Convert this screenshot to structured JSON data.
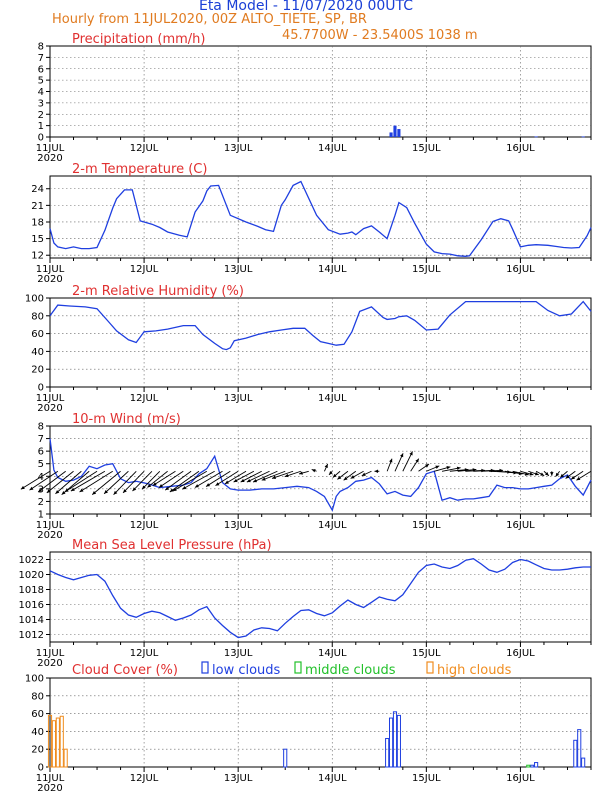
{
  "header": {
    "title": "Eta Model - 11/07/2020 00UTC",
    "subtitle": "Hourly from 11JUL2020, 00Z  ALTO_TIETE, SP, BR",
    "coordinates": "45.7700W - 23.5400S    1038  m"
  },
  "colors": {
    "line": "#1f3fe0",
    "title": "#e03030",
    "header_blue": "#1a3fd6",
    "header_orange": "#e07b20",
    "low": "#1f3fe0",
    "middle": "#22c02a",
    "high": "#f08c1e",
    "wind": "#000000"
  },
  "chart_data": [
    {
      "type": "bar",
      "title": "Precipitation (mm/h)",
      "xlabel": "",
      "ylabel": "",
      "x_range_hours": [
        0,
        138
      ],
      "ylim": [
        0,
        8
      ],
      "yticks": [
        "0",
        "1",
        "2",
        "3",
        "4",
        "5",
        "6",
        "7",
        "8"
      ],
      "xtick_labels": [
        "11JUL",
        "12JUL",
        "13JUL",
        "14JUL",
        "15JUL",
        "16JUL"
      ],
      "x_year_label": "2020",
      "bars": [
        {
          "hour": 87,
          "value": 0.4
        },
        {
          "hour": 88,
          "value": 1.0
        },
        {
          "hour": 89,
          "value": 0.7
        },
        {
          "hour": 124,
          "value": 0.05
        },
        {
          "hour": 136,
          "value": 0.05
        }
      ]
    },
    {
      "type": "line",
      "title": "2-m Temperature (C)",
      "xlabel": "",
      "ylabel": "",
      "x_range_hours": [
        0,
        138
      ],
      "ylim": [
        11.5,
        26.3
      ],
      "yticks": [
        "12",
        "15",
        "18",
        "21",
        "24"
      ],
      "xtick_labels": [
        "11JUL",
        "12JUL",
        "13JUL",
        "14JUL",
        "15JUL",
        "16JUL"
      ],
      "x_year_label": "2020",
      "x": [
        0,
        1,
        2,
        4,
        6,
        8,
        10,
        12,
        14,
        16,
        17,
        19,
        21,
        23,
        26,
        28,
        30,
        33,
        35,
        37,
        39,
        40,
        41,
        43,
        46,
        50,
        53,
        55,
        57,
        59,
        60,
        62,
        64,
        68,
        71,
        74,
        76,
        77,
        78,
        80,
        82,
        84,
        86,
        88,
        89,
        91,
        93,
        96,
        98,
        100,
        102,
        104,
        106,
        107,
        110,
        113,
        115,
        117,
        118,
        120,
        122,
        124,
        127,
        129,
        131,
        133,
        135,
        137,
        138
      ],
      "series": [
        {
          "name": "temperature",
          "values": [
            16.8,
            14.2,
            13.5,
            13.2,
            13.5,
            13.2,
            13.2,
            13.4,
            16.5,
            20.5,
            22.2,
            23.8,
            23.8,
            18.2,
            17.6,
            17.0,
            16.2,
            15.6,
            15.3,
            19.8,
            21.8,
            23.6,
            24.5,
            24.6,
            19.2,
            18.0,
            17.2,
            16.6,
            16.3,
            21.0,
            22.0,
            24.6,
            25.3,
            19.2,
            16.6,
            15.8,
            16.0,
            16.2,
            15.7,
            16.8,
            17.3,
            16.2,
            15.0,
            19.2,
            21.5,
            20.6,
            17.8,
            14.0,
            12.6,
            12.3,
            12.2,
            11.9,
            11.8,
            11.9,
            14.8,
            18.1,
            18.6,
            18.2,
            16.7,
            13.5,
            13.8,
            13.9,
            13.8,
            13.6,
            13.4,
            13.3,
            13.4,
            15.5,
            17.0
          ]
        }
      ]
    },
    {
      "type": "line",
      "title": "2-m Relative Humidity (%)",
      "xlabel": "",
      "ylabel": "",
      "x_range_hours": [
        0,
        138
      ],
      "ylim": [
        0,
        100
      ],
      "yticks": [
        "0",
        "20",
        "40",
        "60",
        "80",
        "100"
      ],
      "xtick_labels": [
        "11JUL",
        "12JUL",
        "13JUL",
        "14JUL",
        "15JUL",
        "16JUL"
      ],
      "x_year_label": "2020",
      "x": [
        0,
        2,
        5,
        9,
        12,
        15,
        17,
        20,
        22,
        24,
        27,
        30,
        34,
        37,
        39,
        42,
        44,
        45,
        46,
        47,
        50,
        53,
        56,
        59,
        62,
        65,
        67,
        69,
        71,
        73,
        75,
        77,
        79,
        82,
        85,
        86,
        88,
        89,
        91,
        93,
        96,
        99,
        102,
        106,
        110,
        113,
        117,
        120,
        124,
        127,
        130,
        133,
        136,
        138
      ],
      "series": [
        {
          "name": "relative_humidity",
          "values": [
            80,
            92,
            91,
            90,
            88,
            73,
            63,
            53,
            50,
            62,
            63,
            65,
            69,
            69,
            59,
            49,
            43,
            42,
            44,
            52,
            55,
            59,
            62,
            64,
            66,
            66,
            58,
            51,
            49,
            47,
            48,
            62,
            85,
            90,
            78,
            76,
            77,
            79,
            80,
            75,
            64,
            65,
            81,
            96,
            96,
            96,
            96,
            96,
            96,
            86,
            80,
            82,
            96,
            85
          ]
        }
      ]
    },
    {
      "type": "line",
      "title": "10-m Wind (m/s)",
      "xlabel": "",
      "ylabel": "",
      "x_range_hours": [
        0,
        138
      ],
      "ylim": [
        1,
        8
      ],
      "yticks": [
        "1",
        "2",
        "3",
        "4",
        "5",
        "6",
        "7",
        "8"
      ],
      "xtick_labels": [
        "11JUL",
        "12JUL",
        "13JUL",
        "14JUL",
        "15JUL",
        "16JUL"
      ],
      "x_year_label": "2020",
      "x": [
        0,
        1,
        2,
        4,
        6,
        8,
        10,
        12,
        14,
        16,
        18,
        20,
        22,
        25,
        28,
        31,
        34,
        36,
        38,
        40,
        42,
        44,
        46,
        48,
        51,
        54,
        57,
        60,
        63,
        66,
        68,
        70,
        72,
        73,
        74,
        76,
        78,
        80,
        82,
        84,
        86,
        88,
        90,
        92,
        94,
        96,
        98,
        100,
        102,
        104,
        106,
        108,
        110,
        112,
        114,
        116,
        118,
        120,
        122,
        124,
        126,
        128,
        130,
        132,
        134,
        136,
        138
      ],
      "series": [
        {
          "name": "wind_speed",
          "values": [
            7,
            4.5,
            3.9,
            3.6,
            3.7,
            4.0,
            4.8,
            4.6,
            4.9,
            5.0,
            3.8,
            3.5,
            3.6,
            3.4,
            3.1,
            3.2,
            3.3,
            3.5,
            4.2,
            4.6,
            5.6,
            3.5,
            3.0,
            2.9,
            2.9,
            3.0,
            3.0,
            3.1,
            3.2,
            3.1,
            2.8,
            2.4,
            1.3,
            2.4,
            2.8,
            3.1,
            3.6,
            3.7,
            3.9,
            3.4,
            2.6,
            2.8,
            2.5,
            2.4,
            3.1,
            4.2,
            4.4,
            2.1,
            2.3,
            2.1,
            2.2,
            2.2,
            2.3,
            2.4,
            3.3,
            3.1,
            3.1,
            3.0,
            3.0,
            3.1,
            3.2,
            3.3,
            3.8,
            4.1,
            3.2,
            2.5,
            3.7
          ]
        }
      ],
      "barbs": {
        "hours": [
          0,
          2,
          4,
          6,
          8,
          10,
          12,
          14,
          16,
          18,
          20,
          22,
          24,
          26,
          28,
          30,
          32,
          34,
          36,
          38,
          40,
          42,
          44,
          46,
          48,
          50,
          52,
          54,
          56,
          58,
          60,
          62,
          64,
          66,
          68,
          70,
          72,
          74,
          76,
          78,
          80,
          82,
          84,
          86,
          88,
          90,
          92,
          94,
          96,
          98,
          100,
          102,
          104,
          106,
          108,
          110,
          112,
          114,
          116,
          118,
          120,
          122,
          124,
          126,
          128,
          130,
          132,
          134,
          136,
          138
        ],
        "u": [
          -3.6,
          -3.5,
          -3.4,
          -3.3,
          -3.2,
          -3.4,
          -4.0,
          -4.2,
          -4.1,
          -3.5,
          -3.0,
          -2.8,
          -2.6,
          -2.4,
          -2.2,
          -2.5,
          -2.8,
          -3.0,
          -3.2,
          -3.6,
          -4.2,
          -4.0,
          -3.4,
          -3.0,
          -2.8,
          -2.6,
          -2.5,
          -2.6,
          -2.8,
          -3.0,
          -2.9,
          -2.6,
          -2.0,
          -1.2,
          -0.6,
          0.4,
          -0.4,
          -0.9,
          -1.3,
          -1.5,
          -1.6,
          -1.2,
          -0.6,
          0.6,
          1.0,
          1.2,
          1.0,
          1.3,
          1.6,
          2.0,
          2.3,
          2.3,
          2.3,
          2.4,
          2.6,
          2.7,
          2.7,
          2.5,
          2.2,
          2.0,
          1.6,
          1.3,
          1.0,
          0.6,
          0.0,
          -0.5,
          -0.9,
          -1.2,
          -1.5,
          -1.8
        ],
        "v": [
          -2.0,
          -2.1,
          -2.3,
          -2.4,
          -2.5,
          -2.6,
          -2.3,
          -2.2,
          -2.3,
          -2.6,
          -2.5,
          -2.6,
          -2.4,
          -2.2,
          -2.0,
          -1.8,
          -1.6,
          -1.8,
          -2.1,
          -2.3,
          -2.2,
          -2.0,
          -1.8,
          -1.7,
          -1.6,
          -1.4,
          -1.2,
          -1.2,
          -1.2,
          -1.2,
          -1.0,
          -0.8,
          -0.6,
          -0.3,
          0.2,
          0.8,
          -0.4,
          -0.7,
          -0.9,
          -1.0,
          -0.8,
          -0.5,
          0.0,
          1.4,
          2.0,
          2.2,
          1.4,
          0.8,
          0.6,
          0.5,
          0.4,
          0.2,
          0.2,
          0.1,
          0.1,
          0.1,
          -0.1,
          -0.2,
          -0.3,
          -0.4,
          -0.4,
          -0.4,
          -0.5,
          -0.5,
          -0.5,
          -0.6,
          -0.7,
          -0.8,
          -0.9,
          -1.0
        ]
      }
    },
    {
      "type": "line",
      "title": "Mean Sea Level Pressure (hPa)",
      "xlabel": "",
      "ylabel": "",
      "x_range_hours": [
        0,
        138
      ],
      "ylim": [
        1011,
        1023
      ],
      "yticks": [
        "1012",
        "1014",
        "1016",
        "1018",
        "1020",
        "1022"
      ],
      "xtick_labels": [
        "11JUL",
        "12JUL",
        "13JUL",
        "14JUL",
        "15JUL",
        "16JUL"
      ],
      "x_year_label": "2020",
      "x": [
        0,
        2,
        4,
        6,
        8,
        10,
        12,
        14,
        16,
        18,
        20,
        22,
        24,
        26,
        28,
        30,
        32,
        34,
        36,
        38,
        40,
        42,
        44,
        46,
        48,
        50,
        52,
        54,
        56,
        58,
        60,
        62,
        64,
        66,
        68,
        70,
        72,
        74,
        76,
        78,
        80,
        82,
        84,
        86,
        88,
        90,
        92,
        94,
        96,
        98,
        100,
        102,
        104,
        106,
        108,
        110,
        112,
        114,
        116,
        118,
        120,
        122,
        124,
        126,
        128,
        130,
        132,
        134,
        136,
        138
      ],
      "series": [
        {
          "name": "mslp",
          "values": [
            1020.5,
            1020.0,
            1019.6,
            1019.3,
            1019.6,
            1019.9,
            1020.0,
            1019.1,
            1017.2,
            1015.5,
            1014.6,
            1014.3,
            1014.8,
            1015.1,
            1014.9,
            1014.4,
            1013.9,
            1014.2,
            1014.6,
            1015.3,
            1015.7,
            1014.2,
            1013.2,
            1012.3,
            1011.6,
            1011.8,
            1012.6,
            1012.9,
            1012.8,
            1012.5,
            1013.5,
            1014.4,
            1015.2,
            1015.3,
            1014.8,
            1014.5,
            1014.9,
            1015.8,
            1016.6,
            1016.0,
            1015.6,
            1016.3,
            1017.0,
            1016.7,
            1016.5,
            1017.3,
            1018.8,
            1020.3,
            1021.2,
            1021.4,
            1021.0,
            1020.8,
            1021.2,
            1021.9,
            1022.1,
            1021.4,
            1020.6,
            1020.3,
            1020.7,
            1021.6,
            1022.0,
            1021.8,
            1021.3,
            1020.8,
            1020.6,
            1020.6,
            1020.7,
            1020.9,
            1021.0,
            1021.0
          ]
        }
      ]
    },
    {
      "type": "bar",
      "title": "Cloud Cover (%)",
      "xlabel": "",
      "ylabel": "",
      "x_range_hours": [
        0,
        138
      ],
      "ylim": [
        0,
        100
      ],
      "yticks": [
        "0",
        "20",
        "40",
        "60",
        "80",
        "100"
      ],
      "xtick_labels": [
        "11JUL",
        "12JUL",
        "13JUL",
        "14JUL",
        "15JUL",
        "16JUL"
      ],
      "x_year_label": "2020",
      "legend": [
        "low clouds",
        "middle clouds",
        "high clouds"
      ],
      "series": [
        {
          "name": "low clouds",
          "bars": [
            {
              "hour": 60,
              "value": 20
            },
            {
              "hour": 86,
              "value": 32
            },
            {
              "hour": 87,
              "value": 55
            },
            {
              "hour": 88,
              "value": 62
            },
            {
              "hour": 89,
              "value": 58
            },
            {
              "hour": 123,
              "value": 2
            },
            {
              "hour": 124,
              "value": 5
            },
            {
              "hour": 134,
              "value": 30
            },
            {
              "hour": 135,
              "value": 42
            },
            {
              "hour": 136,
              "value": 10
            }
          ]
        },
        {
          "name": "middle clouds",
          "bars": [
            {
              "hour": 122,
              "value": 2
            }
          ]
        },
        {
          "name": "high clouds",
          "bars": [
            {
              "hour": 0,
              "value": 58
            },
            {
              "hour": 1,
              "value": 52
            },
            {
              "hour": 2,
              "value": 55
            },
            {
              "hour": 3,
              "value": 57
            },
            {
              "hour": 4,
              "value": 20
            }
          ]
        }
      ]
    }
  ]
}
